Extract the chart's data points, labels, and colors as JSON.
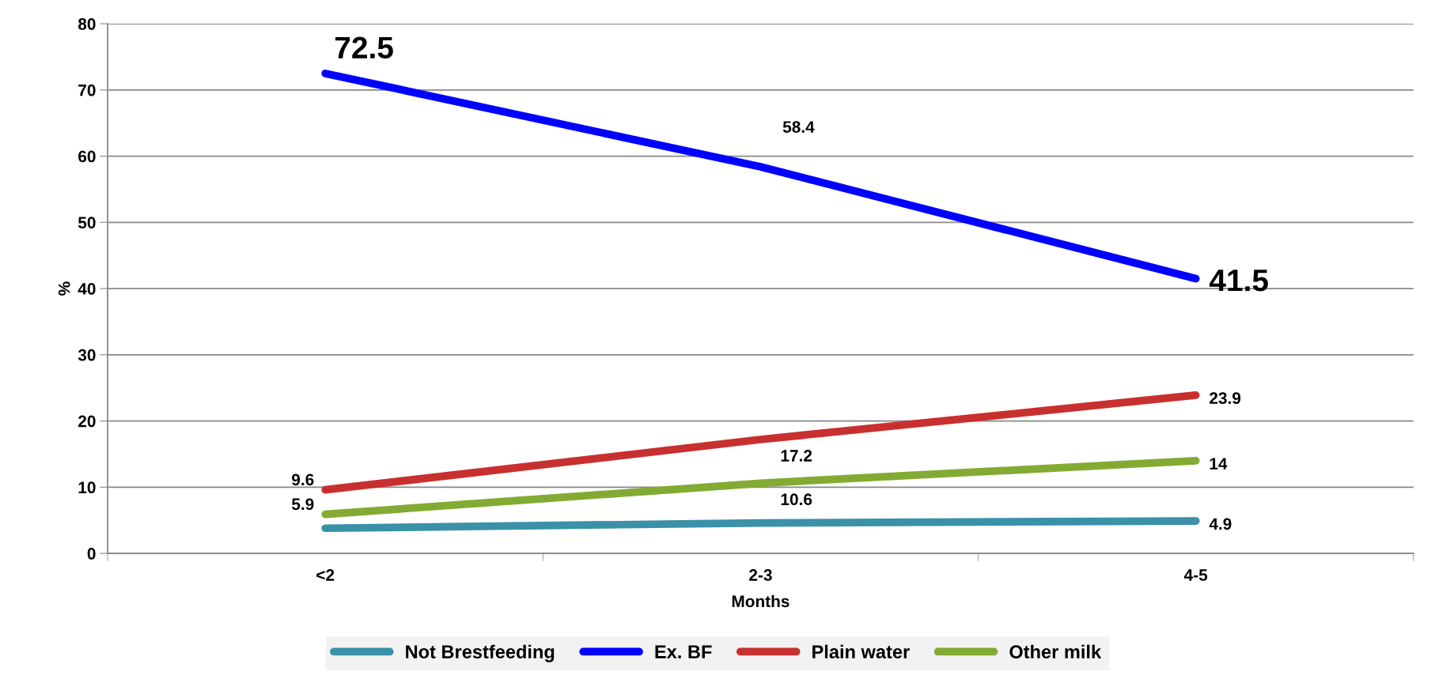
{
  "chart_data": {
    "type": "line",
    "xlabel": "Months",
    "ylabel": "%",
    "categories": [
      "<2",
      "2-3",
      "4-5"
    ],
    "series": [
      {
        "name": "Not Brestfeeding",
        "color": "#3a91a8",
        "values": [
          3.8,
          4.6,
          4.9
        ],
        "value_labels": [
          null,
          null,
          "4.9"
        ]
      },
      {
        "name": "Ex. BF",
        "color": "#0000ff",
        "values": [
          72.5,
          58.4,
          41.5
        ],
        "value_labels": [
          "72.5",
          "58.4",
          "41.5"
        ]
      },
      {
        "name": "Plain water",
        "color": "#c8302f",
        "values": [
          9.6,
          17.2,
          23.9
        ],
        "value_labels": [
          "9.6",
          "17.2",
          "23.9"
        ]
      },
      {
        "name": "Other milk",
        "color": "#83ab34",
        "values": [
          5.9,
          10.6,
          14
        ],
        "value_labels": [
          "5.9",
          "10.6",
          "14"
        ]
      }
    ],
    "ylim": [
      0,
      80
    ],
    "yticks": [
      0,
      10,
      20,
      30,
      40,
      50,
      60,
      70,
      80
    ],
    "grid": "y",
    "legend": "bottom",
    "marker": "none",
    "line_style": "solid"
  }
}
